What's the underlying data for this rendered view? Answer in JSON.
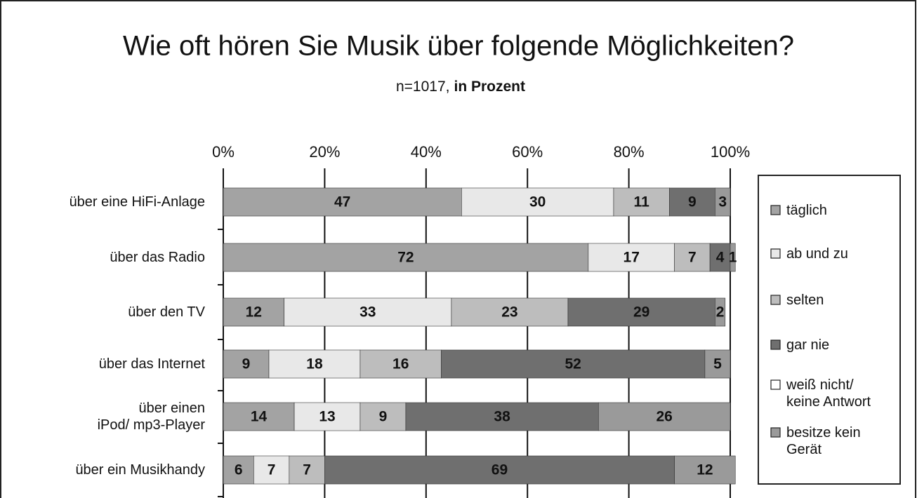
{
  "chart_data": {
    "type": "stacked-bar-horizontal",
    "title": "Wie oft hören Sie Musik über folgende Möglichkeiten?",
    "subtitle": "n=1017,",
    "subtitle_bold": "in Prozent",
    "categories": [
      "über eine HiFi-Anlage",
      "über das Radio",
      "über den TV",
      "über das Internet",
      "über einen\niPod/ mp3-Player",
      "über ein Musikhandy"
    ],
    "series": [
      {
        "name": "täglich",
        "color": "#a3a3a3",
        "values": [
          47,
          72,
          12,
          9,
          14,
          6
        ]
      },
      {
        "name": "ab und zu",
        "color": "#e8e8e8",
        "values": [
          30,
          17,
          33,
          18,
          13,
          7
        ]
      },
      {
        "name": "selten",
        "color": "#bdbdbd",
        "values": [
          11,
          7,
          23,
          16,
          9,
          7
        ]
      },
      {
        "name": "gar nie",
        "color": "#6f6f6f",
        "values": [
          9,
          4,
          29,
          52,
          38,
          69
        ]
      },
      {
        "name": "weiß nicht/\nkeine Antwort",
        "color": "#ffffff",
        "values": [
          null,
          null,
          null,
          null,
          null,
          null
        ]
      },
      {
        "name": "besitze kein\nGerät",
        "color": "#9a9a9a",
        "values": [
          3,
          1,
          2,
          5,
          26,
          12
        ]
      }
    ],
    "xlim": [
      0,
      100
    ],
    "xticks": [
      {
        "value": 0,
        "label": "0%"
      },
      {
        "value": 20,
        "label": "20%"
      },
      {
        "value": 40,
        "label": "40%"
      },
      {
        "value": 60,
        "label": "60%"
      },
      {
        "value": 80,
        "label": "80%"
      },
      {
        "value": 100,
        "label": "100%"
      }
    ],
    "grid": true,
    "legend": "right"
  }
}
